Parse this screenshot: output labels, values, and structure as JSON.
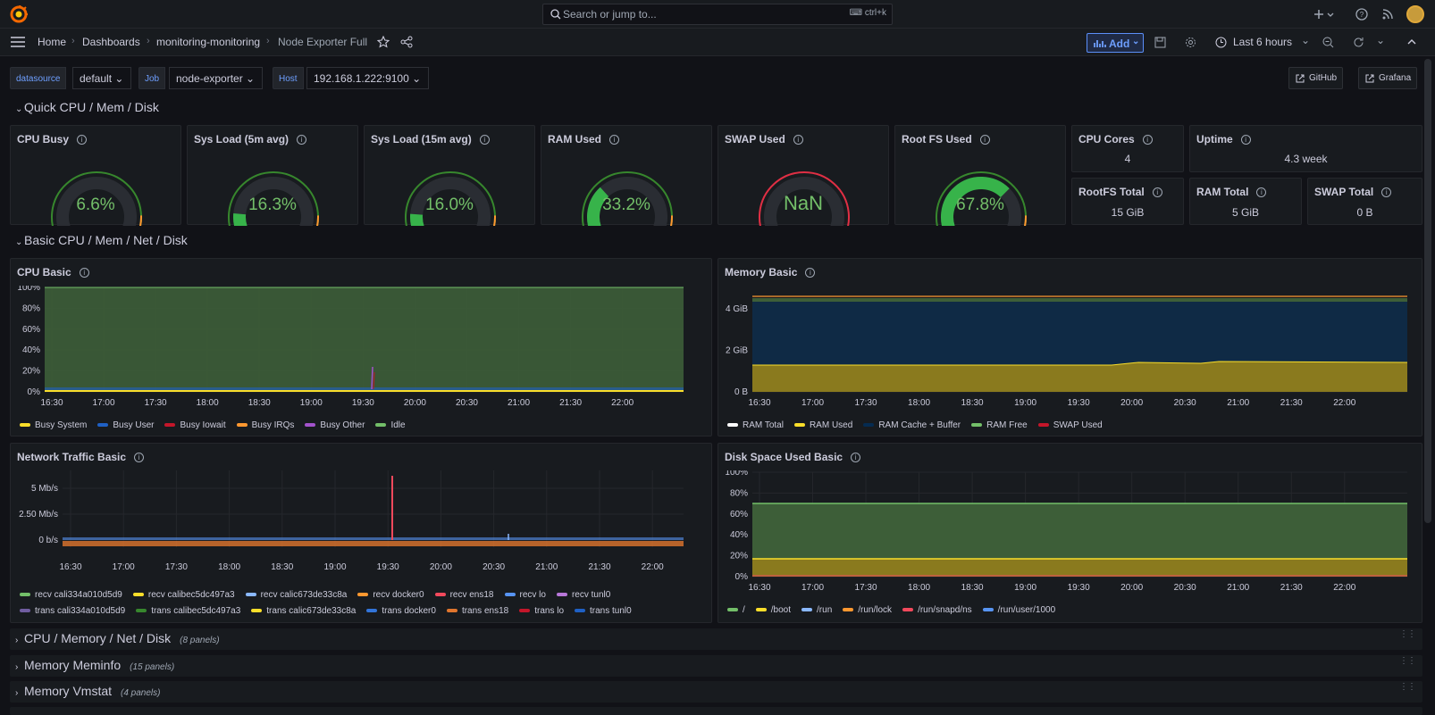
{
  "topbar": {
    "search_placeholder": "Search or jump to...",
    "search_shortcut": "ctrl+k",
    "icons": [
      "grafana-logo-icon",
      "plus-icon",
      "help-icon",
      "news-icon",
      "user-avatar-icon"
    ]
  },
  "nav": {
    "breadcrumbs": [
      "Home",
      "Dashboards",
      "monitoring-monitoring",
      "Node Exporter Full"
    ],
    "add_label": "Add",
    "time_range": "Last 6 hours"
  },
  "variables": [
    {
      "label": "datasource",
      "value": "default"
    },
    {
      "label": "Job",
      "value": "node-exporter"
    },
    {
      "label": "Host",
      "value": "192.168.1.222:9100"
    }
  ],
  "links": [
    {
      "label": "GitHub"
    },
    {
      "label": "Grafana"
    }
  ],
  "rows": {
    "quick": "Quick CPU / Mem / Disk",
    "basic": "Basic CPU / Mem / Net / Disk",
    "collapsed": [
      {
        "title": "CPU / Memory / Net / Disk",
        "count": "(8 panels)"
      },
      {
        "title": "Memory Meminfo",
        "count": "(15 panels)"
      },
      {
        "title": "Memory Vmstat",
        "count": "(4 panels)"
      }
    ]
  },
  "gauges": [
    {
      "title": "CPU Busy",
      "value": "6.6%",
      "fraction": 0.066
    },
    {
      "title": "Sys Load (5m avg)",
      "value": "16.3%",
      "fraction": 0.163
    },
    {
      "title": "Sys Load (15m avg)",
      "value": "16.0%",
      "fraction": 0.16
    },
    {
      "title": "RAM Used",
      "value": "33.2%",
      "fraction": 0.332
    },
    {
      "title": "SWAP Used",
      "value": "NaN",
      "fraction": 0
    },
    {
      "title": "Root FS Used",
      "value": "67.8%",
      "fraction": 0.678
    }
  ],
  "stats": [
    {
      "title": "CPU Cores",
      "value": "4"
    },
    {
      "title": "Uptime",
      "value": "4.3 week"
    },
    {
      "title": "RootFS Total",
      "value": "15 GiB"
    },
    {
      "title": "RAM Total",
      "value": "5 GiB"
    },
    {
      "title": "SWAP Total",
      "value": "0 B"
    }
  ],
  "time_ticks": [
    "16:30",
    "17:00",
    "17:30",
    "18:00",
    "18:30",
    "19:00",
    "19:30",
    "20:00",
    "20:30",
    "21:00",
    "21:30",
    "22:00"
  ],
  "charts": {
    "cpu": {
      "title": "CPU Basic",
      "yticks": [
        "100%",
        "80%",
        "60%",
        "40%",
        "20%",
        "0%"
      ],
      "legend": [
        {
          "name": "Busy System",
          "color": "#fade2a"
        },
        {
          "name": "Busy User",
          "color": "#1f60c4"
        },
        {
          "name": "Busy Iowait",
          "color": "#c4162a"
        },
        {
          "name": "Busy IRQs",
          "color": "#ff9830"
        },
        {
          "name": "Busy Other",
          "color": "#a352cc"
        },
        {
          "name": "Idle",
          "color": "#73bf69"
        }
      ]
    },
    "mem": {
      "title": "Memory Basic",
      "yticks": [
        "4 GiB",
        "2 GiB",
        "0 B"
      ],
      "legend": [
        {
          "name": "RAM Total",
          "color": "#ffffff"
        },
        {
          "name": "RAM Used",
          "color": "#fade2a"
        },
        {
          "name": "RAM Cache + Buffer",
          "color": "#052b51"
        },
        {
          "name": "RAM Free",
          "color": "#73bf69"
        },
        {
          "name": "SWAP Used",
          "color": "#c4162a"
        }
      ]
    },
    "net": {
      "title": "Network Traffic Basic",
      "yticks": [
        "5 Mb/s",
        "2.50 Mb/s",
        "0 b/s"
      ],
      "legend1": [
        {
          "name": "recv cali334a010d5d9",
          "color": "#73bf69"
        },
        {
          "name": "recv calibec5dc497a3",
          "color": "#fade2a"
        },
        {
          "name": "recv calic673de33c8a",
          "color": "#8ab8ff"
        },
        {
          "name": "recv docker0",
          "color": "#ff9830"
        },
        {
          "name": "recv ens18",
          "color": "#f2495c"
        },
        {
          "name": "recv lo",
          "color": "#5794f2"
        },
        {
          "name": "recv tunl0",
          "color": "#b877d9"
        }
      ],
      "legend2": [
        {
          "name": "trans cali334a010d5d9",
          "color": "#705da0"
        },
        {
          "name": "trans calibec5dc497a3",
          "color": "#37872d"
        },
        {
          "name": "trans calic673de33c8a",
          "color": "#fade2a"
        },
        {
          "name": "trans docker0",
          "color": "#3274d9"
        },
        {
          "name": "trans ens18",
          "color": "#e0752d"
        },
        {
          "name": "trans lo",
          "color": "#c4162a"
        },
        {
          "name": "trans tunl0",
          "color": "#1f60c4"
        }
      ]
    },
    "disk": {
      "title": "Disk Space Used Basic",
      "yticks": [
        "100%",
        "80%",
        "60%",
        "40%",
        "20%",
        "0%"
      ],
      "legend": [
        {
          "name": "/",
          "color": "#73bf69"
        },
        {
          "name": "/boot",
          "color": "#fade2a"
        },
        {
          "name": "/run",
          "color": "#8ab8ff"
        },
        {
          "name": "/run/lock",
          "color": "#ff9830"
        },
        {
          "name": "/run/snapd/ns",
          "color": "#f2495c"
        },
        {
          "name": "/run/user/1000",
          "color": "#5794f2"
        }
      ]
    }
  }
}
